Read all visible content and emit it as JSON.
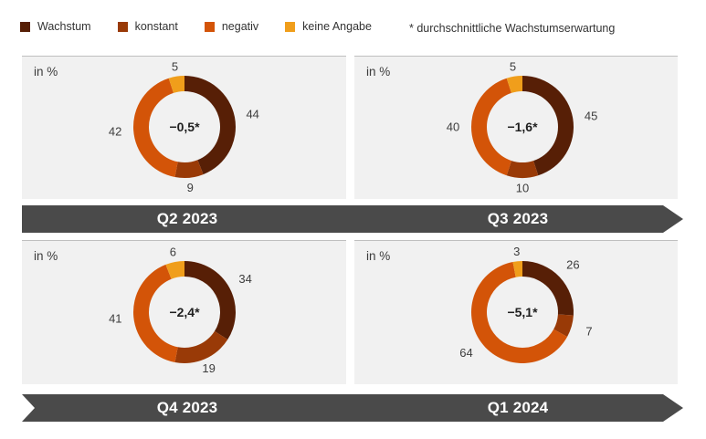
{
  "legend": {
    "items": [
      {
        "label": "Wachstum",
        "color": "#571f06",
        "icon": "legend-swatch"
      },
      {
        "label": "konstant",
        "color": "#993a07",
        "icon": "legend-swatch"
      },
      {
        "label": "negativ",
        "color": "#d35408",
        "icon": "legend-swatch"
      },
      {
        "label": "keine Angabe",
        "color": "#f09e1b",
        "icon": "legend-swatch"
      }
    ],
    "note": "* durchschnittliche Wachstumserwartung"
  },
  "panels": [
    {
      "unit_label": "in %"
    },
    {
      "unit_label": "in %"
    },
    {
      "unit_label": "in %"
    },
    {
      "unit_label": "in %"
    }
  ],
  "banners": [
    {
      "left": "Q2 2023",
      "right": "Q3 2023"
    },
    {
      "left": "Q4 2023",
      "right": "Q1 2024"
    }
  ],
  "styles": {
    "banner_color": "#4a4a4a",
    "panel_background": "#f1f1f1",
    "panel_border": "#bfbfbf"
  },
  "chart_data": [
    {
      "type": "pie",
      "subtype": "donut",
      "title": "Q2 2023",
      "unit": "in %",
      "categories": [
        "Wachstum",
        "konstant",
        "negativ",
        "keine Angabe"
      ],
      "values": [
        44,
        9,
        42,
        5
      ],
      "colors": [
        "#571f06",
        "#993a07",
        "#d35408",
        "#f09e1b"
      ],
      "center_label": "−0,5*",
      "start_angle_deg": 0,
      "direction": "clockwise",
      "legend_position": "top"
    },
    {
      "type": "pie",
      "subtype": "donut",
      "title": "Q3 2023",
      "unit": "in %",
      "categories": [
        "Wachstum",
        "konstant",
        "negativ",
        "keine Angabe"
      ],
      "values": [
        45,
        10,
        40,
        5
      ],
      "colors": [
        "#571f06",
        "#993a07",
        "#d35408",
        "#f09e1b"
      ],
      "center_label": "−1,6*",
      "start_angle_deg": 0,
      "direction": "clockwise",
      "legend_position": "top"
    },
    {
      "type": "pie",
      "subtype": "donut",
      "title": "Q4 2023",
      "unit": "in %",
      "categories": [
        "Wachstum",
        "konstant",
        "negativ",
        "keine Angabe"
      ],
      "values": [
        34,
        19,
        41,
        6
      ],
      "colors": [
        "#571f06",
        "#993a07",
        "#d35408",
        "#f09e1b"
      ],
      "center_label": "−2,4*",
      "start_angle_deg": 0,
      "direction": "clockwise",
      "legend_position": "top"
    },
    {
      "type": "pie",
      "subtype": "donut",
      "title": "Q1 2024",
      "unit": "in %",
      "categories": [
        "Wachstum",
        "konstant",
        "negativ",
        "keine Angabe"
      ],
      "values": [
        26,
        7,
        64,
        3
      ],
      "colors": [
        "#571f06",
        "#993a07",
        "#d35408",
        "#f09e1b"
      ],
      "center_label": "−5,1*",
      "start_angle_deg": 0,
      "direction": "clockwise",
      "legend_position": "top"
    }
  ]
}
